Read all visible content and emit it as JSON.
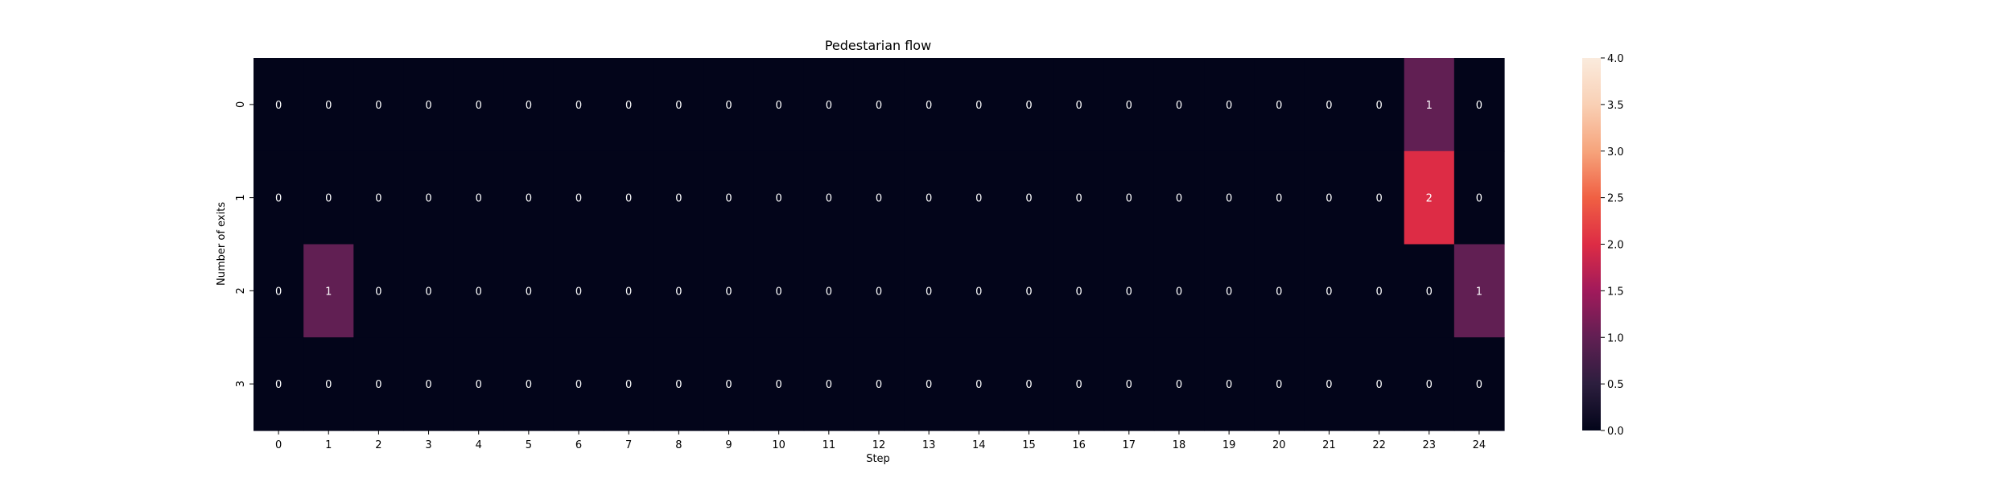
{
  "chart_data": {
    "type": "heatmap",
    "title": "Pedestarian flow",
    "xlabel": "Step",
    "ylabel": "Number of exits",
    "x_ticks": [
      "0",
      "1",
      "2",
      "3",
      "4",
      "5",
      "6",
      "7",
      "8",
      "9",
      "10",
      "11",
      "12",
      "13",
      "14",
      "15",
      "16",
      "17",
      "18",
      "19",
      "20",
      "21",
      "22",
      "23",
      "24"
    ],
    "y_ticks": [
      "0",
      "1",
      "2",
      "3"
    ],
    "values": [
      [
        0,
        0,
        0,
        0,
        0,
        0,
        0,
        0,
        0,
        0,
        0,
        0,
        0,
        0,
        0,
        0,
        0,
        0,
        0,
        0,
        0,
        0,
        0,
        1,
        0
      ],
      [
        0,
        0,
        0,
        0,
        0,
        0,
        0,
        0,
        0,
        0,
        0,
        0,
        0,
        0,
        0,
        0,
        0,
        0,
        0,
        0,
        0,
        0,
        0,
        2,
        0
      ],
      [
        0,
        1,
        0,
        0,
        0,
        0,
        0,
        0,
        0,
        0,
        0,
        0,
        0,
        0,
        0,
        0,
        0,
        0,
        0,
        0,
        0,
        0,
        0,
        0,
        1
      ],
      [
        0,
        0,
        0,
        0,
        0,
        0,
        0,
        0,
        0,
        0,
        0,
        0,
        0,
        0,
        0,
        0,
        0,
        0,
        0,
        0,
        0,
        0,
        0,
        0,
        0
      ]
    ],
    "annotations": true,
    "colormap": "rocket",
    "vmin": 0,
    "vmax": 4,
    "colorbar_ticks": [
      "0.0",
      "0.5",
      "1.0",
      "1.5",
      "2.0",
      "2.5",
      "3.0",
      "3.5",
      "4.0"
    ]
  }
}
